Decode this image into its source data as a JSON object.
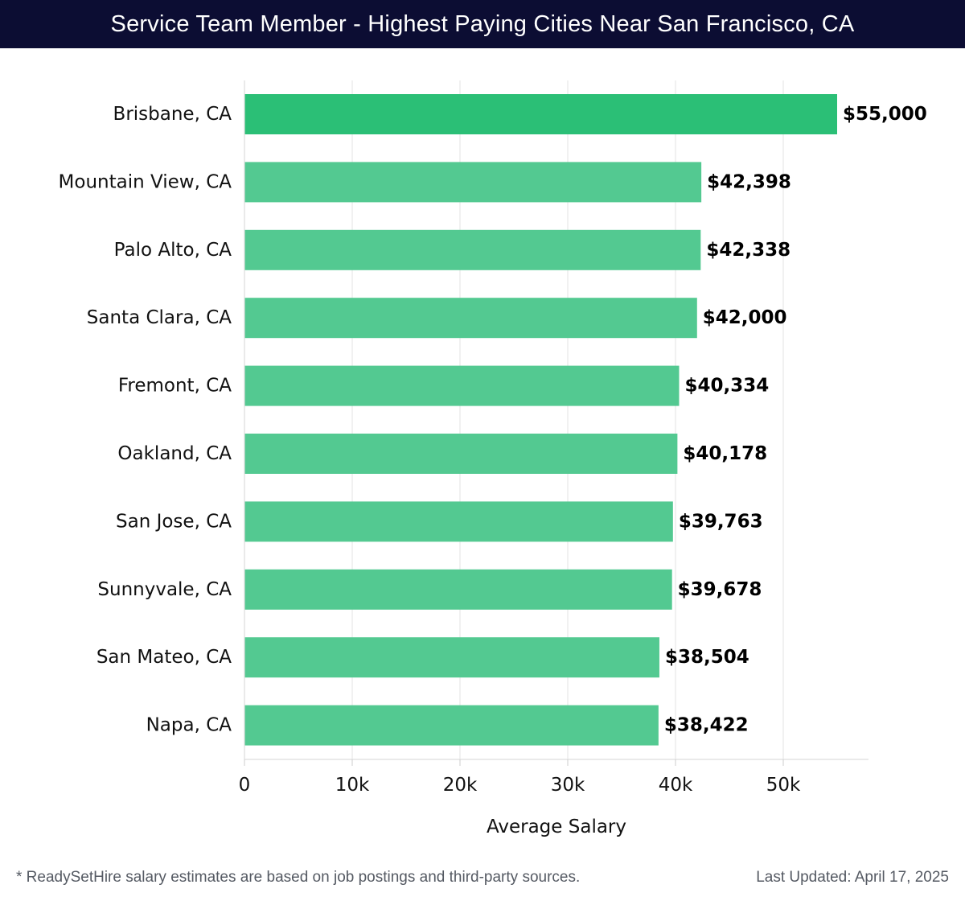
{
  "header": {
    "title": "Service Team Member - Highest Paying Cities Near San Francisco, CA"
  },
  "chart_data": {
    "type": "bar",
    "orientation": "horizontal",
    "title": "Service Team Member - Highest Paying Cities Near San Francisco, CA",
    "xlabel": "Average Salary",
    "ylabel": "",
    "xlim": [
      0,
      58000
    ],
    "x_ticks": [
      0,
      10000,
      20000,
      30000,
      40000,
      50000
    ],
    "x_tick_labels": [
      "0",
      "10k",
      "20k",
      "30k",
      "40k",
      "50k"
    ],
    "grid": true,
    "categories": [
      "Brisbane, CA",
      "Mountain View, CA",
      "Palo Alto, CA",
      "Santa Clara, CA",
      "Fremont, CA",
      "Oakland, CA",
      "San Jose, CA",
      "Sunnyvale, CA",
      "San Mateo, CA",
      "Napa, CA"
    ],
    "values": [
      55000,
      42398,
      42338,
      42000,
      40334,
      40178,
      39763,
      39678,
      38504,
      38422
    ],
    "value_labels": [
      "$55,000",
      "$42,398",
      "$42,338",
      "$42,000",
      "$40,334",
      "$40,178",
      "$39,763",
      "$39,678",
      "$38,504",
      "$38,422"
    ],
    "highlight_color": "#2bbf76",
    "bar_color": "#53c991"
  },
  "footer": {
    "note": "* ReadySetHire salary estimates are based on job postings and third-party sources.",
    "updated": "Last Updated: April 17, 2025"
  }
}
